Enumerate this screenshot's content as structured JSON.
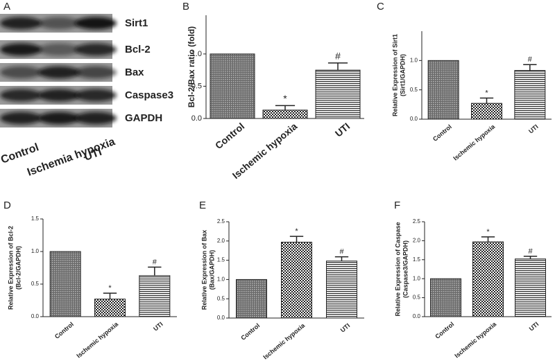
{
  "blot": {
    "label": "A",
    "proteins": [
      "Sirt1",
      "Bcl-2",
      "Bax",
      "Caspase3",
      "GAPDH"
    ],
    "lanes": [
      "Control",
      "Ischemia hypoxia",
      "UTI"
    ]
  },
  "chart_data": [
    {
      "type": "bar",
      "label": "B",
      "ylabel": [
        "Bcl-2/Bax ratio  (fold)"
      ],
      "categories": [
        "Control",
        "Ischemic hypoxia",
        "UTI"
      ],
      "values": [
        1.0,
        0.13,
        0.75
      ],
      "errors": [
        null,
        0.07,
        0.11
      ],
      "fills": [
        "dots",
        "checks",
        "stripes"
      ],
      "ylim": [
        0,
        1.6
      ],
      "yticks": [
        {
          "value": 0,
          "label": "0.0"
        },
        0.5,
        {
          "value": 1,
          "label": "1.0"
        }
      ],
      "annotations": [
        {
          "text": "*",
          "category": "Ischemic hypoxia"
        },
        {
          "text": "#",
          "category": "UTI"
        }
      ]
    },
    {
      "type": "bar",
      "label": "C",
      "ylabel": [
        "Relative Expression of  Sirt1",
        "(Sirt1/GAPDH)"
      ],
      "categories": [
        "Control",
        "Ischemic hypoxia",
        "UTI"
      ],
      "values": [
        1.0,
        0.27,
        0.83
      ],
      "errors": [
        null,
        0.09,
        0.1
      ],
      "fills": [
        "dots",
        "checks",
        "stripes"
      ],
      "ylim": [
        0,
        1.5
      ],
      "yticks": [
        {
          "value": 0,
          "label": "0.0"
        },
        0.5,
        {
          "value": 1,
          "label": "1.0"
        }
      ],
      "annotations": [
        {
          "text": "*",
          "category": "Ischemic hypoxia"
        },
        {
          "text": "#",
          "category": "UTI"
        }
      ]
    },
    {
      "type": "bar",
      "label": "D",
      "ylabel": [
        "Relative Expression of  Bcl-2",
        "(Bcl-2/GAPDH)"
      ],
      "categories": [
        "Control",
        "Ischemic hypoxia",
        "UTI"
      ],
      "values": [
        1.0,
        0.27,
        0.63
      ],
      "errors": [
        null,
        0.09,
        0.13
      ],
      "fills": [
        "dots",
        "checks",
        "stripes"
      ],
      "ylim": [
        0,
        1.5
      ],
      "yticks": [
        {
          "value": 0,
          "label": "0.0"
        },
        0.5,
        {
          "value": 1,
          "label": "1.0"
        },
        1.5
      ],
      "annotations": [
        {
          "text": "*",
          "category": "Ischemic hypoxia"
        },
        {
          "text": "#",
          "category": "UTI"
        }
      ]
    },
    {
      "type": "bar",
      "label": "E",
      "ylabel": [
        "Relative Expression of  Bax",
        "(Bax/GAPDH)"
      ],
      "categories": [
        "Control",
        "Ischemic hypoxia",
        "UTI"
      ],
      "values": [
        1.0,
        1.97,
        1.48
      ],
      "errors": [
        null,
        0.15,
        0.11
      ],
      "fills": [
        "dots",
        "checks",
        "stripes"
      ],
      "ylim": [
        0,
        2.5
      ],
      "yticks": [
        {
          "value": 0,
          "label": "0.0"
        },
        0.5,
        {
          "value": 1,
          "label": "1.0"
        },
        1.5,
        {
          "value": 2,
          "label": "2.0"
        },
        2.5
      ],
      "annotations": [
        {
          "text": "*",
          "category": "Ischemic hypoxia"
        },
        {
          "text": "#",
          "category": "UTI"
        }
      ]
    },
    {
      "type": "bar",
      "label": "F",
      "ylabel": [
        "Relative Expression of  Caspase",
        "(Caspase3/GAPDH)"
      ],
      "categories": [
        "Control",
        "Ischemic hypoxia",
        "UTI"
      ],
      "values": [
        1.0,
        1.97,
        1.52
      ],
      "errors": [
        null,
        0.13,
        0.07
      ],
      "fills": [
        "dots",
        "checks",
        "stripes"
      ],
      "ylim": [
        0,
        2.5
      ],
      "yticks": [
        {
          "value": 0,
          "label": "0.0"
        },
        0.5,
        {
          "value": 1,
          "label": "1.0"
        },
        1.5,
        {
          "value": 2,
          "label": "2.0"
        },
        2.5
      ],
      "annotations": [
        {
          "text": "*",
          "category": "Ischemic hypoxia"
        },
        {
          "text": "#",
          "category": "UTI"
        }
      ]
    }
  ]
}
